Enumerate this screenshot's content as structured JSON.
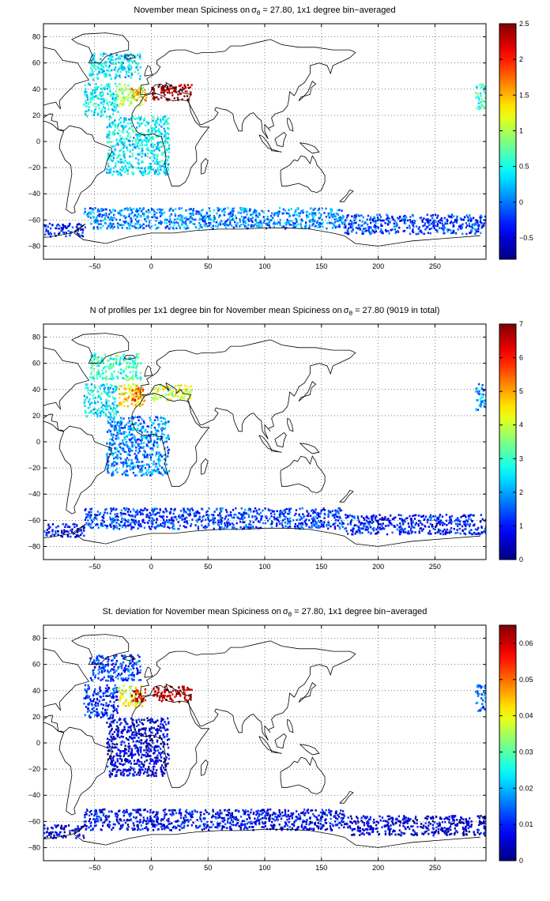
{
  "chart_data": [
    {
      "type": "heatmap",
      "title_prefix": "November mean Spiciness on",
      "title_symbol": "σ",
      "title_symbol_sub": "θ",
      "title_suffix": " = 27.80, 1x1 degree bin−averaged",
      "xlim": [
        -95,
        295
      ],
      "ylim": [
        -90,
        90
      ],
      "xticks": [
        -50,
        0,
        50,
        100,
        150,
        200,
        250
      ],
      "yticks": [
        -80,
        -60,
        -40,
        -20,
        0,
        20,
        40,
        60,
        80
      ],
      "grid": true,
      "colormap": "jet",
      "clim": [
        -0.8,
        2.5
      ],
      "colorbar_ticks": [
        -0.5,
        0,
        0.5,
        1,
        1.5,
        2,
        2.5
      ],
      "colorbar_tick_labels": [
        "−0.5",
        "0",
        "0.5",
        "1",
        "1.5",
        "2",
        "2.5"
      ],
      "regions": [
        {
          "lon": [
            -55,
            -10
          ],
          "lat": [
            48,
            68
          ],
          "value": 0.35
        },
        {
          "lon": [
            -60,
            -30
          ],
          "lat": [
            20,
            45
          ],
          "value": 0.45
        },
        {
          "lon": [
            -30,
            -8
          ],
          "lat": [
            28,
            45
          ],
          "value": 1.0
        },
        {
          "lon": [
            -18,
            -5
          ],
          "lat": [
            32,
            42
          ],
          "value": 1.6
        },
        {
          "lon": [
            0,
            35
          ],
          "lat": [
            32,
            44
          ],
          "value": 2.45
        },
        {
          "lon": [
            -40,
            15
          ],
          "lat": [
            -25,
            20
          ],
          "value": 0.4
        },
        {
          "lon": [
            -60,
            170
          ],
          "lat": [
            -66,
            -50
          ],
          "value": 0.05
        },
        {
          "lon": [
            170,
            295
          ],
          "lat": [
            -70,
            -55
          ],
          "value": -0.2
        },
        {
          "lon": [
            -95,
            -60
          ],
          "lat": [
            -72,
            -62
          ],
          "value": -0.3
        },
        {
          "lon": [
            285,
            295
          ],
          "lat": [
            25,
            45
          ],
          "value": 0.6
        }
      ]
    },
    {
      "type": "heatmap",
      "title_prefix": "N of profiles per 1x1 degree bin for November mean Spiciness on",
      "title_symbol": "σ",
      "title_symbol_sub": "θ",
      "title_suffix": " = 27.80 (9019 in total)",
      "xlim": [
        -95,
        295
      ],
      "ylim": [
        -90,
        90
      ],
      "xticks": [
        -50,
        0,
        50,
        100,
        150,
        200,
        250
      ],
      "yticks": [
        -80,
        -60,
        -40,
        -20,
        0,
        20,
        40,
        60,
        80
      ],
      "grid": true,
      "colormap": "jet",
      "clim": [
        0,
        7
      ],
      "colorbar_ticks": [
        0,
        1,
        2,
        3,
        4,
        5,
        6,
        7
      ],
      "colorbar_tick_labels": [
        "0",
        "1",
        "2",
        "3",
        "4",
        "5",
        "6",
        "7"
      ],
      "regions": [
        {
          "lon": [
            -55,
            -10
          ],
          "lat": [
            48,
            68
          ],
          "value": 3.0
        },
        {
          "lon": [
            -60,
            -30
          ],
          "lat": [
            20,
            45
          ],
          "value": 2.5
        },
        {
          "lon": [
            -30,
            -8
          ],
          "lat": [
            28,
            45
          ],
          "value": 4.5
        },
        {
          "lon": [
            -18,
            -5
          ],
          "lat": [
            32,
            42
          ],
          "value": 5.5
        },
        {
          "lon": [
            0,
            35
          ],
          "lat": [
            32,
            44
          ],
          "value": 4.0
        },
        {
          "lon": [
            -40,
            15
          ],
          "lat": [
            -25,
            20
          ],
          "value": 1.8
        },
        {
          "lon": [
            -60,
            170
          ],
          "lat": [
            -66,
            -50
          ],
          "value": 1.3
        },
        {
          "lon": [
            170,
            295
          ],
          "lat": [
            -70,
            -55
          ],
          "value": 1.0
        },
        {
          "lon": [
            -95,
            -60
          ],
          "lat": [
            -72,
            -62
          ],
          "value": 1.0
        },
        {
          "lon": [
            285,
            295
          ],
          "lat": [
            25,
            45
          ],
          "value": 2.0
        }
      ]
    },
    {
      "type": "heatmap",
      "title_prefix": "St. deviation for November mean Spiciness on",
      "title_symbol": "σ",
      "title_symbol_sub": "θ",
      "title_suffix": " = 27.80, 1x1 degree bin−averaged",
      "xlim": [
        -95,
        295
      ],
      "ylim": [
        -90,
        90
      ],
      "xticks": [
        -50,
        0,
        50,
        100,
        150,
        200,
        250
      ],
      "yticks": [
        -80,
        -60,
        -40,
        -20,
        0,
        20,
        40,
        60,
        80
      ],
      "grid": true,
      "colormap": "jet",
      "clim": [
        0,
        0.065
      ],
      "colorbar_ticks": [
        0,
        0.01,
        0.02,
        0.03,
        0.04,
        0.05,
        0.06
      ],
      "colorbar_tick_labels": [
        "0",
        "0.01",
        "0.02",
        "0.03",
        "0.04",
        "0.05",
        "0.06"
      ],
      "regions": [
        {
          "lon": [
            -55,
            -10
          ],
          "lat": [
            48,
            68
          ],
          "value": 0.012
        },
        {
          "lon": [
            -60,
            -30
          ],
          "lat": [
            20,
            45
          ],
          "value": 0.01
        },
        {
          "lon": [
            -30,
            -8
          ],
          "lat": [
            28,
            45
          ],
          "value": 0.04
        },
        {
          "lon": [
            -18,
            -5
          ],
          "lat": [
            32,
            42
          ],
          "value": 0.06
        },
        {
          "lon": [
            0,
            35
          ],
          "lat": [
            32,
            44
          ],
          "value": 0.062
        },
        {
          "lon": [
            -40,
            15
          ],
          "lat": [
            -25,
            20
          ],
          "value": 0.006
        },
        {
          "lon": [
            -60,
            170
          ],
          "lat": [
            -66,
            -50
          ],
          "value": 0.008
        },
        {
          "lon": [
            170,
            295
          ],
          "lat": [
            -70,
            -55
          ],
          "value": 0.005
        },
        {
          "lon": [
            -95,
            -60
          ],
          "lat": [
            -72,
            -62
          ],
          "value": 0.006
        },
        {
          "lon": [
            285,
            295
          ],
          "lat": [
            25,
            45
          ],
          "value": 0.015
        }
      ]
    }
  ]
}
